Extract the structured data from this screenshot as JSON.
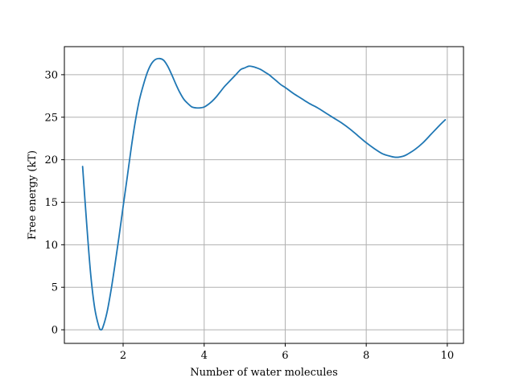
{
  "chart_data": {
    "type": "line",
    "title": "",
    "xlabel": "Number of water molecules",
    "ylabel": "Free energy (kT)",
    "xlim": [
      0.55,
      10.4
    ],
    "ylim": [
      -1.6,
      33.3
    ],
    "grid": true,
    "legend": "none",
    "xticks": [
      2,
      4,
      6,
      8,
      10
    ],
    "yticks": [
      0,
      5,
      10,
      15,
      20,
      25,
      30
    ],
    "line_color": "#1f77b4",
    "series": [
      {
        "x": [
          1.0,
          1.1,
          1.2,
          1.3,
          1.4,
          1.45,
          1.5,
          1.6,
          1.7,
          1.8,
          1.9,
          2.0,
          2.1,
          2.2,
          2.3,
          2.4,
          2.5,
          2.6,
          2.7,
          2.8,
          2.9,
          3.0,
          3.1,
          3.2,
          3.3,
          3.4,
          3.5,
          3.6,
          3.7,
          3.8,
          3.9,
          4.0,
          4.1,
          4.2,
          4.3,
          4.4,
          4.5,
          4.6,
          4.7,
          4.8,
          4.9,
          5.0,
          5.1,
          5.2,
          5.3,
          5.4,
          5.5,
          5.6,
          5.7,
          5.8,
          5.9,
          6.0,
          6.2,
          6.4,
          6.6,
          6.8,
          7.0,
          7.2,
          7.4,
          7.6,
          7.8,
          8.0,
          8.2,
          8.4,
          8.6,
          8.7,
          8.8,
          8.9,
          9.0,
          9.2,
          9.4,
          9.6,
          9.8,
          9.95
        ],
        "y": [
          19.2,
          12.5,
          6.5,
          2.5,
          0.4,
          0.0,
          0.3,
          2.0,
          4.6,
          7.7,
          11.0,
          14.5,
          17.9,
          21.4,
          24.5,
          27.0,
          28.8,
          30.3,
          31.3,
          31.8,
          31.9,
          31.7,
          31.0,
          30.0,
          28.9,
          27.9,
          27.1,
          26.6,
          26.2,
          26.1,
          26.1,
          26.2,
          26.5,
          26.9,
          27.4,
          28.0,
          28.6,
          29.1,
          29.6,
          30.1,
          30.6,
          30.8,
          31.0,
          30.95,
          30.8,
          30.6,
          30.3,
          30.0,
          29.6,
          29.2,
          28.8,
          28.5,
          27.8,
          27.2,
          26.6,
          26.1,
          25.5,
          24.9,
          24.3,
          23.6,
          22.8,
          22.0,
          21.3,
          20.7,
          20.4,
          20.3,
          20.3,
          20.4,
          20.6,
          21.2,
          22.0,
          23.0,
          24.0,
          24.7
        ]
      }
    ]
  }
}
